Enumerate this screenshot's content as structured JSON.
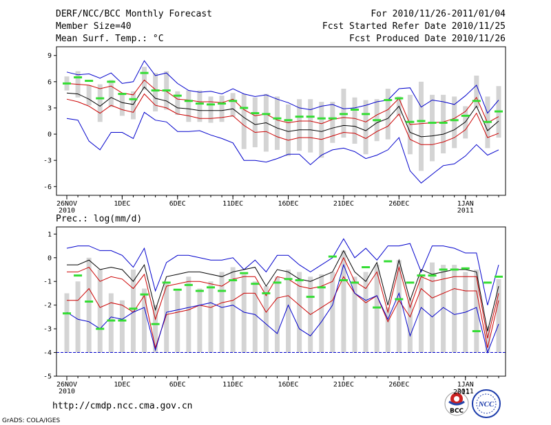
{
  "header": {
    "left": [
      "DERF/NCC/BCC Monthly Forecast",
      "Member Size=40",
      "Mean Surf. Temp.: °C"
    ],
    "right": [
      "For 2010/11/26-2011/01/04",
      "Fcst Started Refer Date 2010/11/25",
      "Fcst Produced Date 2010/11/26"
    ]
  },
  "footer": {
    "url": "http://cmdp.ncc.cma.gov.cn",
    "grads": "GrADS: COLA/IGES",
    "logo_left": "BCC",
    "logo_right": "NCC",
    "logo_year": "2011"
  },
  "colors": {
    "max_min": "#0000cc",
    "percentile": "#cc0000",
    "median": "#000000",
    "box": "#d4d4d4",
    "climate": "#33dd33",
    "baseline": "#0000cc"
  },
  "chart_data": [
    {
      "type": "box-line",
      "title": "Mean Surf. Temp.: °C",
      "x": [
        1,
        2,
        3,
        4,
        5,
        6,
        7,
        8,
        9,
        10,
        11,
        12,
        13,
        14,
        15,
        16,
        17,
        18,
        19,
        20,
        21,
        22,
        23,
        24,
        25,
        26,
        27,
        28,
        29,
        30,
        31,
        32,
        33,
        34,
        35,
        36,
        37,
        38,
        39,
        40
      ],
      "x_ticks": [
        {
          "x": 1,
          "label": "26NOV",
          "sub": "2010"
        },
        {
          "x": 6,
          "label": "1DEC",
          "sub": ""
        },
        {
          "x": 11,
          "label": "6DEC",
          "sub": ""
        },
        {
          "x": 16,
          "label": "11DEC",
          "sub": ""
        },
        {
          "x": 21,
          "label": "16DEC",
          "sub": ""
        },
        {
          "x": 26,
          "label": "21DEC",
          "sub": ""
        },
        {
          "x": 31,
          "label": "26DEC",
          "sub": ""
        },
        {
          "x": 37,
          "label": "1JAN",
          "sub": "2011"
        }
      ],
      "ylim": [
        -7,
        10
      ],
      "y_ticks": [
        9,
        6,
        3,
        0,
        -3,
        -6
      ],
      "series": [
        {
          "name": "max",
          "role": "max_min",
          "values": [
            7.1,
            6.8,
            6.9,
            6.4,
            7.0,
            5.8,
            6.0,
            8.4,
            6.7,
            7.0,
            5.8,
            5.0,
            4.8,
            4.9,
            4.6,
            5.2,
            4.6,
            4.3,
            4.5,
            4.0,
            3.6,
            3.0,
            2.8,
            3.2,
            3.4,
            2.9,
            3.0,
            3.3,
            3.7,
            3.9,
            5.2,
            5.3,
            3.1,
            3.9,
            3.7,
            3.4,
            4.4,
            5.6,
            2.4,
            3.9
          ]
        },
        {
          "name": "p75",
          "role": "percentile",
          "values": [
            5.8,
            5.7,
            5.6,
            5.2,
            5.5,
            4.7,
            4.5,
            6.2,
            5.1,
            4.9,
            4.0,
            3.9,
            3.7,
            3.7,
            3.6,
            4.0,
            2.8,
            2.1,
            2.3,
            1.6,
            1.3,
            1.5,
            1.5,
            1.2,
            1.7,
            1.9,
            1.8,
            1.4,
            2.2,
            2.8,
            4.1,
            1.1,
            1.2,
            1.3,
            1.4,
            1.8,
            2.6,
            4.2,
            1.3,
            2.0
          ]
        },
        {
          "name": "median",
          "role": "median",
          "values": [
            4.7,
            4.6,
            4.0,
            3.2,
            4.2,
            3.6,
            3.4,
            5.4,
            4.1,
            3.8,
            3.0,
            2.9,
            2.7,
            2.7,
            2.7,
            2.9,
            1.9,
            1.1,
            1.3,
            0.7,
            0.3,
            0.5,
            0.5,
            0.3,
            0.7,
            1.0,
            0.9,
            0.4,
            1.3,
            1.8,
            3.2,
            0.2,
            -0.3,
            -0.2,
            0.0,
            0.5,
            1.4,
            3.2,
            0.4,
            1.5
          ]
        },
        {
          "name": "p25",
          "role": "percentile",
          "values": [
            4.0,
            3.7,
            3.2,
            2.4,
            3.3,
            2.8,
            2.5,
            4.6,
            3.3,
            3.0,
            2.3,
            2.1,
            1.8,
            1.8,
            1.9,
            2.1,
            1.0,
            0.2,
            0.3,
            -0.3,
            -0.7,
            -0.4,
            -0.4,
            -0.6,
            -0.2,
            0.2,
            0.1,
            -0.5,
            0.3,
            0.9,
            2.3,
            -0.6,
            -1.2,
            -1.2,
            -0.9,
            -0.4,
            0.5,
            2.4,
            -0.4,
            0.1
          ]
        },
        {
          "name": "min",
          "role": "max_min",
          "values": [
            1.8,
            1.6,
            -0.8,
            -1.8,
            0.2,
            0.2,
            -0.5,
            2.5,
            1.6,
            1.4,
            0.3,
            0.3,
            0.4,
            -0.1,
            -0.5,
            -1.0,
            -3.0,
            -3.0,
            -3.2,
            -2.8,
            -2.3,
            -2.3,
            -3.5,
            -2.4,
            -1.8,
            -1.6,
            -2.0,
            -2.8,
            -2.4,
            -1.8,
            -0.4,
            -4.2,
            -5.6,
            -4.6,
            -3.6,
            -3.4,
            -2.5,
            -1.2,
            -2.4,
            -1.8
          ]
        }
      ],
      "box_low": [
        5.0,
        4.2,
        3.3,
        1.4,
        3.1,
        2.1,
        1.7,
        5.1,
        2.6,
        2.8,
        2.2,
        1.4,
        1.4,
        1.3,
        1.4,
        2.0,
        -1.7,
        -1.5,
        -2.0,
        -1.8,
        -2.5,
        -1.9,
        -2.1,
        -2.7,
        -1.0,
        -0.4,
        -1.1,
        -2.3,
        -0.8,
        -0.6,
        2.1,
        -2.3,
        -4.2,
        -3.1,
        -2.2,
        -1.6,
        -0.5,
        3.0,
        -1.6,
        -0.4
      ],
      "box_high": [
        6.6,
        7.2,
        5.6,
        5.7,
        6.2,
        4.6,
        4.9,
        7.7,
        7.0,
        7.2,
        4.9,
        5.0,
        5.0,
        4.3,
        4.4,
        4.7,
        4.6,
        4.2,
        4.6,
        4.3,
        3.4,
        4.0,
        4.0,
        3.7,
        3.7,
        5.2,
        4.2,
        3.9,
        4.0,
        5.2,
        4.3,
        4.5,
        6.0,
        4.5,
        4.5,
        4.3,
        3.2,
        6.7,
        4.3,
        5.5
      ],
      "climate": [
        5.8,
        6.5,
        6.1,
        4.1,
        6.0,
        4.6,
        4.0,
        7.0,
        5.0,
        5.0,
        4.4,
        3.8,
        3.5,
        3.4,
        3.5,
        3.8,
        3.0,
        2.4,
        2.3,
        1.8,
        1.6,
        2.0,
        2.0,
        1.8,
        1.8,
        2.3,
        2.8,
        2.3,
        1.6,
        3.9,
        4.1,
        1.4,
        1.5,
        1.3,
        1.3,
        1.6,
        2.1,
        3.8,
        1.4,
        2.6
      ]
    },
    {
      "type": "box-line",
      "title": "Prec.: log(mm/d)",
      "x": [
        1,
        2,
        3,
        4,
        5,
        6,
        7,
        8,
        9,
        10,
        11,
        12,
        13,
        14,
        15,
        16,
        17,
        18,
        19,
        20,
        21,
        22,
        23,
        24,
        25,
        26,
        27,
        28,
        29,
        30,
        31,
        32,
        33,
        34,
        35,
        36,
        37,
        38,
        39,
        40
      ],
      "x_ticks": [
        {
          "x": 1,
          "label": "26NOV",
          "sub": "2010"
        },
        {
          "x": 6,
          "label": "1DEC",
          "sub": ""
        },
        {
          "x": 11,
          "label": "6DEC",
          "sub": ""
        },
        {
          "x": 16,
          "label": "11DEC",
          "sub": ""
        },
        {
          "x": 21,
          "label": "16DEC",
          "sub": ""
        },
        {
          "x": 26,
          "label": "21DEC",
          "sub": ""
        },
        {
          "x": 31,
          "label": "26DEC",
          "sub": ""
        },
        {
          "x": 37,
          "label": "1JAN",
          "sub": "2011"
        }
      ],
      "ylim": [
        -5,
        1.3
      ],
      "y_ticks": [
        1,
        0,
        -1,
        -2,
        -3,
        -4,
        -5
      ],
      "baseline": -4,
      "series": [
        {
          "name": "max",
          "role": "max_min",
          "values": [
            0.4,
            0.5,
            0.5,
            0.3,
            0.3,
            0.1,
            -0.4,
            0.4,
            -1.4,
            -0.2,
            0.1,
            0.1,
            0.0,
            -0.1,
            -0.1,
            0.0,
            -0.5,
            -0.1,
            -0.6,
            0.1,
            0.1,
            -0.3,
            -0.6,
            -0.3,
            0.0,
            0.8,
            0.0,
            0.4,
            -0.1,
            0.5,
            0.5,
            0.6,
            -0.6,
            0.5,
            0.5,
            0.4,
            0.2,
            0.2,
            -2.0,
            -0.3
          ]
        },
        {
          "name": "median",
          "role": "median",
          "values": [
            -0.3,
            -0.3,
            -0.1,
            -0.5,
            -0.4,
            -0.5,
            -1.0,
            -0.3,
            -2.2,
            -0.8,
            -0.7,
            -0.6,
            -0.6,
            -0.7,
            -0.8,
            -0.6,
            -0.5,
            -0.4,
            -1.2,
            -0.5,
            -0.6,
            -0.9,
            -1.0,
            -0.8,
            -0.6,
            0.3,
            -0.6,
            -1.0,
            -0.2,
            -2.0,
            -0.1,
            -1.8,
            -0.5,
            -0.7,
            -0.6,
            -0.5,
            -0.5,
            -0.6,
            -3.1,
            -1.2
          ]
        },
        {
          "name": "p75",
          "role": "percentile",
          "values": [
            -0.6,
            -0.6,
            -0.4,
            -1.0,
            -0.8,
            -0.9,
            -1.3,
            -0.7,
            -2.6,
            -1.2,
            -1.1,
            -1.0,
            -1.0,
            -1.1,
            -1.2,
            -0.9,
            -0.8,
            -0.8,
            -1.6,
            -0.8,
            -0.9,
            -1.2,
            -1.3,
            -1.2,
            -1.0,
            0.0,
            -1.0,
            -1.3,
            -0.6,
            -2.3,
            -0.4,
            -2.1,
            -0.8,
            -1.0,
            -0.9,
            -0.8,
            -0.8,
            -0.8,
            -3.4,
            -1.5
          ]
        },
        {
          "name": "p25",
          "role": "percentile",
          "values": [
            -1.8,
            -1.8,
            -1.3,
            -2.1,
            -1.9,
            -2.0,
            -2.3,
            -1.6,
            -3.8,
            -2.4,
            -2.3,
            -2.2,
            -2.0,
            -2.1,
            -1.9,
            -1.8,
            -1.5,
            -1.5,
            -2.3,
            -1.7,
            -1.6,
            -2.0,
            -2.4,
            -2.1,
            -1.8,
            -0.8,
            -1.5,
            -1.9,
            -1.6,
            -2.7,
            -1.8,
            -2.5,
            -1.3,
            -1.7,
            -1.5,
            -1.3,
            -1.4,
            -1.4,
            -3.8,
            -1.8
          ]
        },
        {
          "name": "min",
          "role": "max_min",
          "values": [
            -2.3,
            -2.6,
            -2.7,
            -3.0,
            -2.5,
            -2.6,
            -2.3,
            -2.1,
            -3.9,
            -2.3,
            -2.2,
            -2.1,
            -2.0,
            -1.9,
            -2.1,
            -2.0,
            -2.3,
            -2.4,
            -2.8,
            -3.2,
            -2.0,
            -3.0,
            -3.3,
            -2.7,
            -2.0,
            -0.3,
            -1.5,
            -1.8,
            -1.6,
            -2.6,
            -1.5,
            -3.3,
            -2.1,
            -2.5,
            -2.1,
            -2.4,
            -2.3,
            -2.1,
            -4.0,
            -2.8
          ]
        }
      ],
      "box_low": [
        -4,
        -4,
        -4,
        -4,
        -4,
        -4,
        -4,
        -4,
        -4,
        -4,
        -4,
        -4,
        -4,
        -4,
        -4,
        -4,
        -4,
        -4,
        -4,
        -4,
        -4,
        -4,
        -4,
        -4,
        -4,
        -4,
        -4,
        -4,
        -4,
        -4,
        -4,
        -4,
        -4,
        -4,
        -4,
        -4,
        -4,
        -4,
        -4,
        -4
      ],
      "box_high": [
        -1.5,
        -1.0,
        0.0,
        -0.5,
        -1.5,
        -1.8,
        -0.5,
        -1.3,
        -2.0,
        -1.1,
        -1.4,
        -0.8,
        -1.3,
        -1.0,
        -0.6,
        -0.4,
        -0.7,
        -1.0,
        -1.2,
        -0.8,
        -0.5,
        -0.6,
        -0.8,
        -0.7,
        -0.6,
        0.3,
        -0.8,
        -0.6,
        -0.3,
        -2.1,
        -0.1,
        -1.8,
        -0.7,
        -0.2,
        -0.3,
        -0.3,
        -0.6,
        -0.5,
        -2.9,
        -0.9
      ],
      "climate": [
        -2.35,
        -0.75,
        -1.85,
        -3.0,
        -2.65,
        -2.65,
        -2.15,
        -1.55,
        -2.8,
        -1.05,
        -1.35,
        -1.15,
        -1.4,
        -1.25,
        -1.4,
        -0.95,
        -0.65,
        -1.1,
        -1.5,
        -1.05,
        -0.9,
        -0.95,
        -1.65,
        -1.25,
        0.05,
        -0.95,
        -1.05,
        -0.4,
        -2.1,
        -0.15,
        -1.75,
        -1.05,
        -0.75,
        -0.75,
        -0.5,
        -0.5,
        -0.45,
        -3.1,
        -1.05,
        -0.8
      ]
    }
  ]
}
